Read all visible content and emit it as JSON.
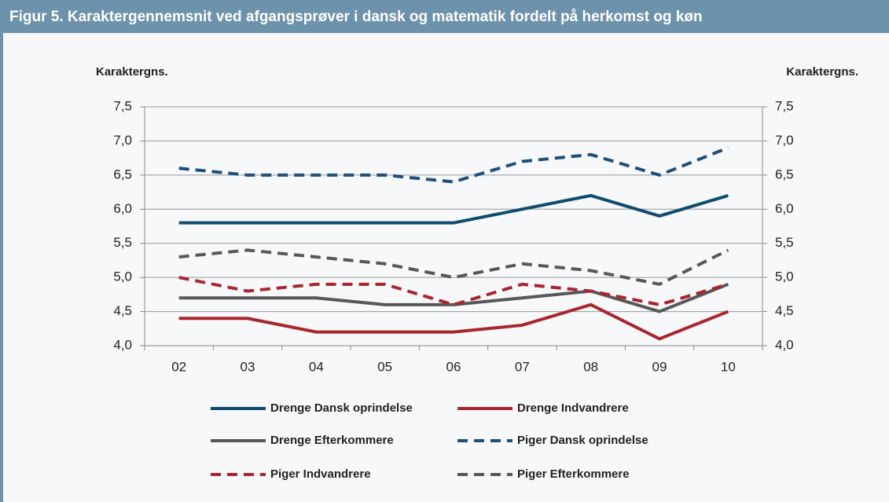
{
  "chart_data": {
    "type": "line",
    "title": "Figur 5. Karaktergennemsnit ved afgangsprøver i dansk og matematik fordelt på herkomst og køn",
    "ylabel": "Karaktergns.",
    "y2label": "Karaktergns.",
    "categories": [
      "02",
      "03",
      "04",
      "05",
      "06",
      "07",
      "08",
      "09",
      "10"
    ],
    "series": [
      {
        "name": "Drenge Dansk oprindelse",
        "color": "#0f4c6e",
        "dash": false,
        "values": [
          5.8,
          5.8,
          5.8,
          5.8,
          5.8,
          6.0,
          6.2,
          5.9,
          6.2
        ]
      },
      {
        "name": "Drenge Indvandrere",
        "color": "#a9262c",
        "dash": false,
        "values": [
          4.4,
          4.4,
          4.2,
          4.2,
          4.2,
          4.3,
          4.6,
          4.1,
          4.5
        ]
      },
      {
        "name": "Drenge Efterkommere",
        "color": "#58585a",
        "dash": false,
        "values": [
          4.7,
          4.7,
          4.7,
          4.6,
          4.6,
          4.7,
          4.8,
          4.5,
          4.9
        ]
      },
      {
        "name": "Piger Dansk oprindelse",
        "color": "#1f4f7c",
        "dash": true,
        "values": [
          6.6,
          6.5,
          6.5,
          6.5,
          6.4,
          6.7,
          6.8,
          6.5,
          6.9
        ]
      },
      {
        "name": "Piger Indvandrere",
        "color": "#a9262c",
        "dash": true,
        "values": [
          5.0,
          4.8,
          4.9,
          4.9,
          4.6,
          4.9,
          4.8,
          4.6,
          4.9
        ]
      },
      {
        "name": "Piger Efterkommere",
        "color": "#58585a",
        "dash": true,
        "values": [
          5.3,
          5.4,
          5.3,
          5.2,
          5.0,
          5.2,
          5.1,
          4.9,
          5.4
        ]
      }
    ],
    "ylim": [
      4,
      7.5
    ],
    "yticks": [
      {
        "value": 4,
        "label": "4,0"
      },
      {
        "value": 4.5,
        "label": "4,5"
      },
      {
        "value": 5,
        "label": "5,0"
      },
      {
        "value": 5.5,
        "label": "5,5"
      },
      {
        "value": 6,
        "label": "6,0"
      },
      {
        "value": 6.5,
        "label": "6,5"
      },
      {
        "value": 7,
        "label": "7,0"
      },
      {
        "value": 7.5,
        "label": "7,5"
      }
    ],
    "y2lim": [
      4,
      7.5
    ],
    "y2ticks": [
      {
        "value": 4,
        "label": "4,0"
      },
      {
        "value": 4.5,
        "label": "4,5"
      },
      {
        "value": 5,
        "label": "5,0"
      },
      {
        "value": 5.5,
        "label": "5,5"
      },
      {
        "value": 6,
        "label": "6,0"
      },
      {
        "value": 6.5,
        "label": "6,5"
      },
      {
        "value": 7,
        "label": "7,0"
      },
      {
        "value": 7.5,
        "label": "7,5"
      }
    ],
    "grid": true
  }
}
